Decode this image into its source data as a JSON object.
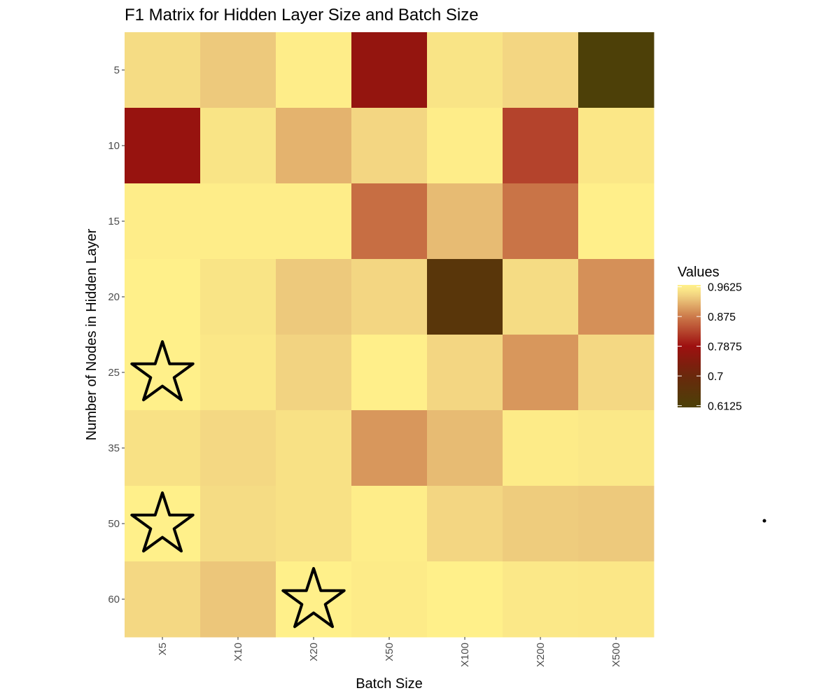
{
  "chart_data": {
    "type": "heatmap",
    "title": "F1 Matrix for Hidden Layer Size and Batch Size",
    "xlabel": "Batch Size",
    "ylabel": "Number of Nodes in Hidden Layer",
    "x": [
      "X5",
      "X10",
      "X20",
      "X50",
      "X100",
      "X200",
      "X500"
    ],
    "y": [
      "5",
      "10",
      "15",
      "20",
      "25",
      "35",
      "50",
      "60"
    ],
    "values": [
      [
        0.945,
        0.93,
        0.96,
        0.77,
        0.952,
        0.94,
        0.612
      ],
      [
        0.775,
        0.952,
        0.915,
        0.94,
        0.96,
        0.83,
        0.955
      ],
      [
        0.96,
        0.96,
        0.96,
        0.865,
        0.92,
        0.87,
        0.962
      ],
      [
        0.968,
        0.952,
        0.93,
        0.94,
        0.65,
        0.945,
        0.89
      ],
      [
        0.966,
        0.955,
        0.938,
        0.962,
        0.94,
        0.895,
        0.942
      ],
      [
        0.95,
        0.942,
        0.95,
        0.895,
        0.92,
        0.958,
        0.956
      ],
      [
        0.966,
        0.945,
        0.95,
        0.96,
        0.94,
        0.932,
        0.93
      ],
      [
        0.942,
        0.928,
        0.966,
        0.958,
        0.968,
        0.956,
        0.955
      ]
    ],
    "highlighted_cells": [
      {
        "x": "X5",
        "y": "25"
      },
      {
        "x": "X5",
        "y": "50"
      },
      {
        "x": "X20",
        "y": "60"
      }
    ],
    "legend": {
      "title": "Values",
      "labels": [
        "0.9625",
        "0.875",
        "0.7875",
        "0.7",
        "0.6125"
      ],
      "label_values": [
        0.9625,
        0.875,
        0.7875,
        0.7,
        0.6125
      ],
      "range": [
        0.6075,
        0.968
      ],
      "placement": "right"
    },
    "color_scale": [
      {
        "v": 0.6125,
        "color": "#4d4008"
      },
      {
        "v": 0.7,
        "color": "#6a280c"
      },
      {
        "v": 0.7875,
        "color": "#9e1010"
      },
      {
        "v": 0.875,
        "color": "#cc7a4a"
      },
      {
        "v": 0.935,
        "color": "#f0d080"
      },
      {
        "v": 0.9625,
        "color": "#fff08a"
      }
    ],
    "grid": false
  }
}
